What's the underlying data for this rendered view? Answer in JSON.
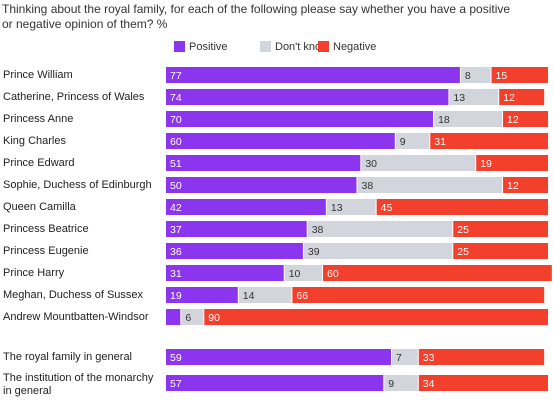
{
  "chart_data": {
    "type": "stacked-bar-horizontal",
    "title": "Thinking about the royal family, for each of the following please say whether you have a positive or negative opinion of them? %",
    "categories": [
      "Prince William",
      "Catherine, Princess of Wales",
      "Princess Anne",
      "King Charles",
      "Prince Edward",
      "Sophie, Duchess of Edinburgh",
      "Queen Camilla",
      "Princess Beatrice",
      "Princess Eugenie",
      "Prince Harry",
      "Meghan, Duchess of Sussex",
      "Andrew Mountbatten-Windsor",
      "The royal family in general",
      "The institution of the monarchy in general"
    ],
    "xlim": [
      0,
      100
    ],
    "series": [
      {
        "name": "Positive",
        "color": "#8c35ee",
        "values": [
          77,
          74,
          70,
          60,
          51,
          50,
          42,
          37,
          36,
          31,
          19,
          4,
          59,
          57
        ],
        "value_labels": [
          "77",
          "74",
          "70",
          "60",
          "51",
          "50",
          "42",
          "37",
          "36",
          "31",
          "19",
          null,
          "59",
          "57"
        ]
      },
      {
        "name": "Don't know",
        "color": "#d3d5dd",
        "values": [
          8,
          13,
          18,
          9,
          30,
          38,
          13,
          38,
          39,
          10,
          14,
          6,
          7,
          9
        ]
      },
      {
        "name": "Negative",
        "color": "#f2402d",
        "values": [
          15,
          12,
          12,
          31,
          19,
          12,
          45,
          25,
          25,
          60,
          66,
          90,
          33,
          34
        ]
      }
    ]
  }
}
